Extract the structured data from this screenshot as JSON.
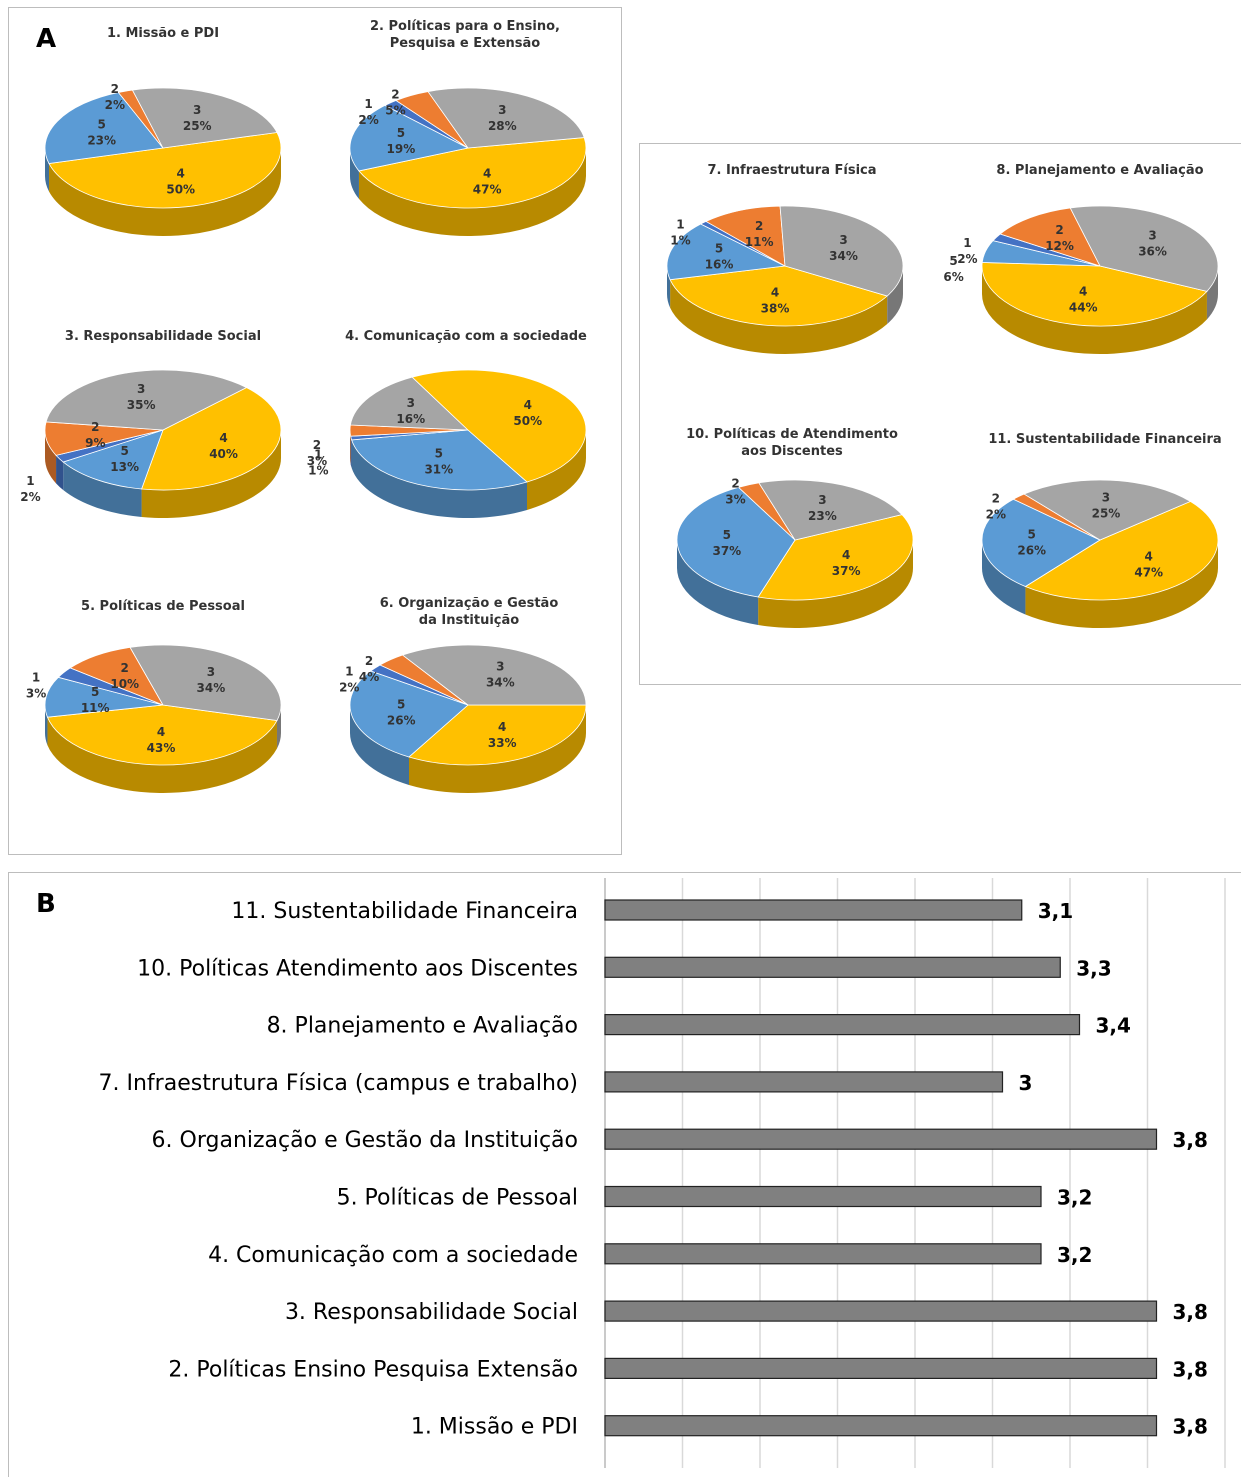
{
  "panel_labels": {
    "a": "A",
    "b": "B"
  },
  "colors": {
    "1": "#4472C4",
    "2": "#ED7D31",
    "3": "#A5A5A5",
    "4": "#FFC000",
    "5": "#5B9BD5",
    "bar": "#808080"
  },
  "chart_data": [
    {
      "type": "pie",
      "panel": "A",
      "title": "1. Missão e PDI",
      "slices": [
        {
          "name": "4",
          "value": 50,
          "label": "50%"
        },
        {
          "name": "5",
          "value": 23,
          "label": "23%"
        },
        {
          "name": "2",
          "value": 2,
          "label": "2%"
        },
        {
          "name": "3",
          "value": 25,
          "label": "25%"
        }
      ]
    },
    {
      "type": "pie",
      "panel": "A",
      "title": "2. Políticas para o Ensino, Pesquisa e Extensão",
      "slices": [
        {
          "name": "4",
          "value": 47,
          "label": "47%"
        },
        {
          "name": "5",
          "value": 19,
          "label": "19%"
        },
        {
          "name": "1",
          "value": 2,
          "label": "2%"
        },
        {
          "name": "2",
          "value": 5,
          "label": "5%"
        },
        {
          "name": "3",
          "value": 28,
          "label": "28%"
        }
      ]
    },
    {
      "type": "pie",
      "panel": "A",
      "title": "3. Responsabilidade Social",
      "slices": [
        {
          "name": "4",
          "value": 40,
          "label": "40%"
        },
        {
          "name": "5",
          "value": 13,
          "label": "13%"
        },
        {
          "name": "1",
          "value": 2,
          "label": "2%"
        },
        {
          "name": "2",
          "value": 9,
          "label": "9%"
        },
        {
          "name": "3",
          "value": 35,
          "label": "35%"
        }
      ]
    },
    {
      "type": "pie",
      "panel": "A",
      "title": "4. Comunicação com a sociedade",
      "slices": [
        {
          "name": "5",
          "value": 31,
          "label": "31%"
        },
        {
          "name": "1",
          "value": 1,
          "label": "1%"
        },
        {
          "name": "2",
          "value": 3,
          "label": "3%"
        },
        {
          "name": "3",
          "value": 16,
          "label": "16%"
        },
        {
          "name": "4",
          "value": 50,
          "label": "50%"
        }
      ]
    },
    {
      "type": "pie",
      "panel": "A",
      "title": "5. Políticas de Pessoal",
      "slices": [
        {
          "name": "4",
          "value": 43,
          "label": "43%"
        },
        {
          "name": "5",
          "value": 11,
          "label": "11%"
        },
        {
          "name": "1",
          "value": 3,
          "label": "3%"
        },
        {
          "name": "2",
          "value": 10,
          "label": "10%"
        },
        {
          "name": "3",
          "value": 34,
          "label": "34%"
        }
      ]
    },
    {
      "type": "pie",
      "panel": "A",
      "title": "6. Organização e Gestão da Instituição",
      "slices": [
        {
          "name": "4",
          "value": 33,
          "label": "33%"
        },
        {
          "name": "5",
          "value": 26,
          "label": "26%"
        },
        {
          "name": "1",
          "value": 2,
          "label": "2%"
        },
        {
          "name": "2",
          "value": 4,
          "label": "4%"
        },
        {
          "name": "3",
          "value": 34,
          "label": "34%"
        }
      ]
    },
    {
      "type": "pie",
      "panel": "A",
      "title": "7. Infraestrutura Física",
      "slices": [
        {
          "name": "4",
          "value": 38,
          "label": "38%"
        },
        {
          "name": "5",
          "value": 16,
          "label": "16%"
        },
        {
          "name": "1",
          "value": 1,
          "label": "1%"
        },
        {
          "name": "2",
          "value": 11,
          "label": "11%"
        },
        {
          "name": "3",
          "value": 34,
          "label": "34%"
        }
      ]
    },
    {
      "type": "pie",
      "panel": "A",
      "title": "8. Planejamento e Avaliação",
      "slices": [
        {
          "name": "4",
          "value": 44,
          "label": "44%"
        },
        {
          "name": "5",
          "value": 6,
          "label": "6%"
        },
        {
          "name": "1",
          "value": 2,
          "label": "2%"
        },
        {
          "name": "2",
          "value": 12,
          "label": "12%"
        },
        {
          "name": "3",
          "value": 36,
          "label": "36%"
        }
      ]
    },
    {
      "type": "pie",
      "panel": "A",
      "title": "10. Políticas de Atendimento aos Discentes",
      "slices": [
        {
          "name": "4",
          "value": 37,
          "label": "37%"
        },
        {
          "name": "5",
          "value": 37,
          "label": "37%"
        },
        {
          "name": "2",
          "value": 3,
          "label": "3%"
        },
        {
          "name": "3",
          "value": 23,
          "label": "23%"
        }
      ]
    },
    {
      "type": "pie",
      "panel": "A",
      "title": "11. Sustentabilidade Financeira",
      "slices": [
        {
          "name": "4",
          "value": 47,
          "label": "47%"
        },
        {
          "name": "5",
          "value": 26,
          "label": "26%"
        },
        {
          "name": "2",
          "value": 2,
          "label": "2%"
        },
        {
          "name": "3",
          "value": 25,
          "label": "25%"
        }
      ]
    },
    {
      "type": "bar",
      "panel": "B",
      "orientation": "horizontal",
      "categories": [
        "11. Sustentabilidade Financeira",
        "10. Políticas Atendimento aos Discentes",
        "8. Planejamento e Avaliação",
        "7. Infraestrutura Física (campus e trabalho)",
        "6. Organização e Gestão da Instituição",
        "5. Políticas de Pessoal",
        "4. Comunicação com a sociedade",
        "3. Responsabilidade Social",
        "2. Políticas Ensino Pesquisa Extensão",
        "1. Missão e PDI"
      ],
      "values": [
        3.1,
        3.3,
        3.4,
        3,
        3.8,
        3.2,
        3.2,
        3.8,
        3.8,
        3.8
      ],
      "value_labels": [
        "3,1",
        "3,3",
        "3,4",
        "3",
        "3,8",
        "3,2",
        "3,2",
        "3,8",
        "3,8",
        "3,8"
      ],
      "xlim": [
        0,
        4
      ],
      "grid": true
    }
  ]
}
